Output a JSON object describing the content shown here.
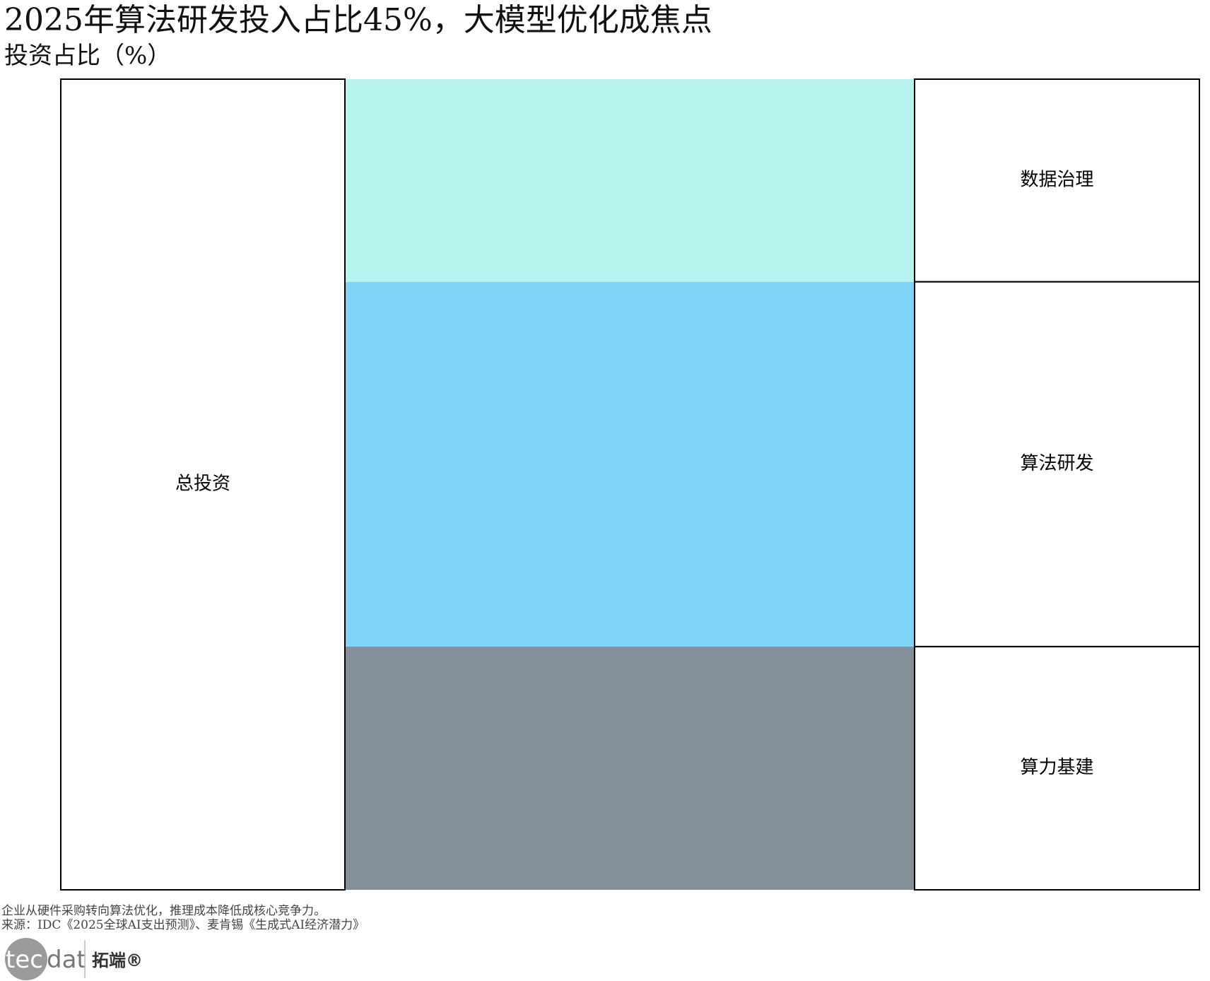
{
  "chart_data": {
    "type": "sankey",
    "title": "2025年算法研发投入占比45%，大模型优化成焦点",
    "subtitle": "投资占比（%）",
    "source_node": "总投资",
    "flows": [
      {
        "name": "数据治理",
        "value": 25,
        "color": "#b8f4ef"
      },
      {
        "name": "算法研发",
        "value": 45,
        "color": "#80d4f7"
      },
      {
        "name": "算力基建",
        "value": 30,
        "color": "#858f98"
      }
    ]
  },
  "footer": {
    "note": "企业从硬件采购转向算法优化，推理成本降低成核心竞争力。",
    "source": "来源：IDC《2025全球AI支出预测》、麦肯锡《生成式AI经济潜力》",
    "logo_text": "tecdat",
    "logo_cn": "拓端®"
  }
}
